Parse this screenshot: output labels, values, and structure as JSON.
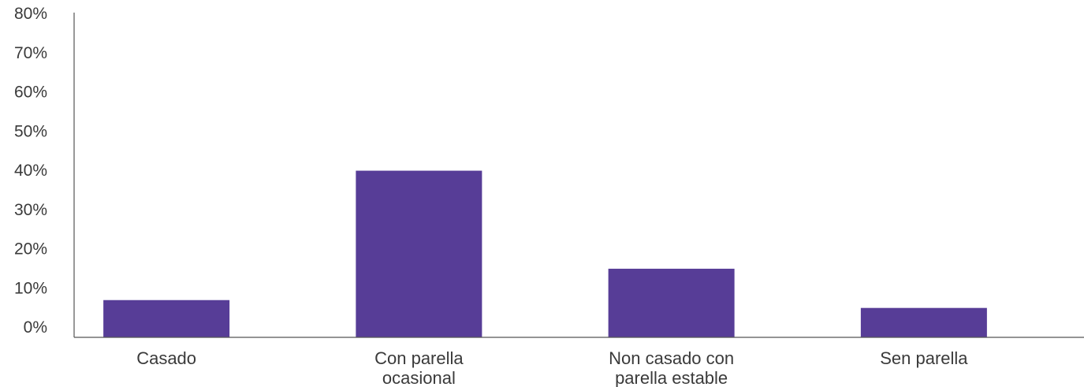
{
  "chart_data": {
    "type": "bar",
    "categories": [
      [
        "Casado"
      ],
      [
        "Con parella",
        "ocasional"
      ],
      [
        "Non casado con",
        "parella estable"
      ],
      [
        "Sen parella"
      ]
    ],
    "values": [
      9.5,
      42.5,
      17.5,
      7.5
    ],
    "y_ticks": [
      "0%",
      "10%",
      "20%",
      "30%",
      "40%",
      "50%",
      "60%",
      "70%",
      "80%"
    ],
    "ylim": [
      0,
      80
    ],
    "grid": false,
    "legend": "none",
    "colors": {
      "bar": "#573d97",
      "axis": "#555555",
      "text": "#3a3a3a"
    }
  }
}
